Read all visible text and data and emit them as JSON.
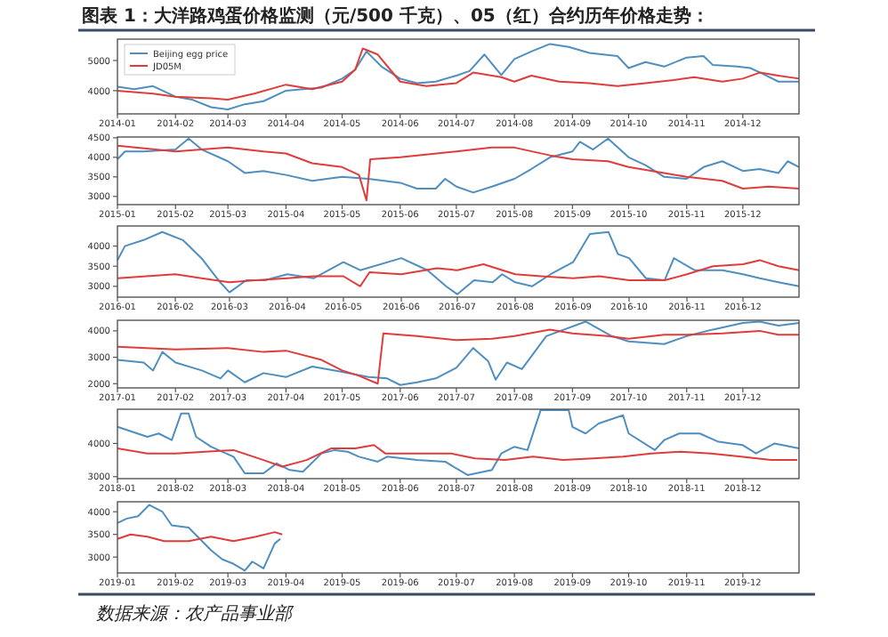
{
  "chart_data": [
    {
      "type": "line",
      "title": "图表 1：大洋路鸡蛋价格监测（元/500 千克）、05（红）合约历年价格走势：",
      "legend": "top left",
      "marker": "none",
      "line_style": "solid",
      "grid": false,
      "xlim": [
        "2014-01-01",
        "2014-12-31"
      ],
      "xticks": [
        "2014-01",
        "2014-02",
        "2014-03",
        "2014-04",
        "2014-05",
        "2014-06",
        "2014-07",
        "2014-08",
        "2014-09",
        "2014-10",
        "2014-11",
        "2014-12"
      ],
      "ylim": [
        3230,
        5710
      ],
      "yticks": [
        4000,
        5000
      ],
      "series": [
        {
          "name": "Beijing egg price",
          "color": "#4f8fc0",
          "x": [
            "2014-01-01",
            "2014-01-10",
            "2014-01-20",
            "2014-02-01",
            "2014-02-10",
            "2014-02-20",
            "2014-03-01",
            "2014-03-10",
            "2014-03-20",
            "2014-04-01",
            "2014-04-10",
            "2014-04-20",
            "2014-05-01",
            "2014-05-08",
            "2014-05-14",
            "2014-05-22",
            "2014-06-01",
            "2014-06-10",
            "2014-06-20",
            "2014-07-01",
            "2014-07-08",
            "2014-07-16",
            "2014-07-25",
            "2014-08-01",
            "2014-08-10",
            "2014-08-20",
            "2014-08-30",
            "2014-09-10",
            "2014-09-25",
            "2014-10-01",
            "2014-10-10",
            "2014-10-20",
            "2014-11-01",
            "2014-11-10",
            "2014-11-15",
            "2014-11-28",
            "2014-12-05",
            "2014-12-12",
            "2014-12-20",
            "2014-12-31"
          ],
          "values": [
            4130,
            4050,
            4150,
            3800,
            3700,
            3450,
            3380,
            3550,
            3650,
            4000,
            4050,
            4100,
            4400,
            4700,
            5300,
            4800,
            4400,
            4250,
            4300,
            4500,
            4650,
            5200,
            4520,
            5050,
            5300,
            5550,
            5450,
            5250,
            5150,
            4750,
            4950,
            4800,
            5100,
            5150,
            4850,
            4800,
            4750,
            4550,
            4300,
            4300
          ]
        },
        {
          "name": "JD05M",
          "color": "#e03c3c",
          "x": [
            "2014-01-01",
            "2014-01-20",
            "2014-02-01",
            "2014-02-20",
            "2014-03-01",
            "2014-03-15",
            "2014-04-01",
            "2014-04-15",
            "2014-05-01",
            "2014-05-08",
            "2014-05-12",
            "2014-05-20",
            "2014-06-01",
            "2014-06-15",
            "2014-07-01",
            "2014-07-10",
            "2014-07-25",
            "2014-08-01",
            "2014-08-10",
            "2014-08-25",
            "2014-09-10",
            "2014-09-25",
            "2014-10-10",
            "2014-10-25",
            "2014-11-05",
            "2014-11-20",
            "2014-12-01",
            "2014-12-10",
            "2014-12-20",
            "2014-12-31"
          ],
          "values": [
            4000,
            3900,
            3800,
            3750,
            3700,
            3900,
            4200,
            4050,
            4300,
            4700,
            5400,
            5200,
            4300,
            4150,
            4250,
            4600,
            4450,
            4300,
            4500,
            4300,
            4250,
            4150,
            4250,
            4350,
            4450,
            4300,
            4400,
            4600,
            4500,
            4400
          ]
        }
      ]
    },
    {
      "type": "line",
      "marker": "none",
      "line_style": "solid",
      "grid": false,
      "xlim": [
        "2015-01-01",
        "2015-12-31"
      ],
      "xticks": [
        "2015-01",
        "2015-02",
        "2015-03",
        "2015-04",
        "2015-05",
        "2015-06",
        "2015-07",
        "2015-08",
        "2015-09",
        "2015-10",
        "2015-11",
        "2015-12"
      ],
      "ylim": [
        2790,
        4520
      ],
      "yticks": [
        3000,
        3500,
        4000,
        4500
      ],
      "series": [
        {
          "color": "#4f8fc0",
          "x": [
            "2015-01-01",
            "2015-01-05",
            "2015-01-15",
            "2015-02-01",
            "2015-02-08",
            "2015-02-15",
            "2015-03-01",
            "2015-03-10",
            "2015-03-20",
            "2015-04-01",
            "2015-04-15",
            "2015-05-01",
            "2015-05-15",
            "2015-06-01",
            "2015-06-10",
            "2015-06-20",
            "2015-06-25",
            "2015-07-01",
            "2015-07-10",
            "2015-07-20",
            "2015-08-01",
            "2015-08-10",
            "2015-08-20",
            "2015-09-01",
            "2015-09-05",
            "2015-09-12",
            "2015-09-20",
            "2015-10-01",
            "2015-10-10",
            "2015-10-20",
            "2015-11-01",
            "2015-11-10",
            "2015-11-20",
            "2015-12-01",
            "2015-12-10",
            "2015-12-20",
            "2015-12-25",
            "2015-12-31"
          ],
          "values": [
            3950,
            4150,
            4150,
            4200,
            4480,
            4200,
            3900,
            3600,
            3650,
            3550,
            3400,
            3500,
            3450,
            3350,
            3200,
            3200,
            3450,
            3250,
            3100,
            3250,
            3450,
            3700,
            4000,
            4150,
            4400,
            4200,
            4480,
            4000,
            3800,
            3500,
            3450,
            3750,
            3900,
            3650,
            3700,
            3600,
            3900,
            3750
          ]
        },
        {
          "color": "#e03c3c",
          "x": [
            "2015-01-01",
            "2015-02-01",
            "2015-02-15",
            "2015-03-01",
            "2015-03-20",
            "2015-04-01",
            "2015-04-15",
            "2015-05-01",
            "2015-05-10",
            "2015-05-14",
            "2015-05-16",
            "2015-06-01",
            "2015-07-01",
            "2015-07-20",
            "2015-08-01",
            "2015-08-20",
            "2015-09-01",
            "2015-09-20",
            "2015-10-01",
            "2015-10-20",
            "2015-11-01",
            "2015-11-20",
            "2015-12-01",
            "2015-12-15",
            "2015-12-31"
          ],
          "values": [
            4300,
            4150,
            4200,
            4250,
            4150,
            4100,
            3850,
            3750,
            3550,
            2900,
            3950,
            4000,
            4150,
            4250,
            4250,
            4050,
            3950,
            3900,
            3750,
            3600,
            3500,
            3400,
            3200,
            3250,
            3200
          ]
        }
      ]
    },
    {
      "type": "line",
      "marker": "none",
      "line_style": "solid",
      "grid": false,
      "xlim": [
        "2016-01-01",
        "2016-12-31"
      ],
      "xticks": [
        "2016-01",
        "2016-02",
        "2016-03",
        "2016-04",
        "2016-05",
        "2016-06",
        "2016-07",
        "2016-08",
        "2016-09",
        "2016-10",
        "2016-11",
        "2016-12"
      ],
      "ylim": [
        2730,
        4500
      ],
      "yticks": [
        3000,
        3500,
        4000
      ],
      "series": [
        {
          "color": "#4f8fc0",
          "x": [
            "2016-01-01",
            "2016-01-05",
            "2016-01-15",
            "2016-01-25",
            "2016-02-05",
            "2016-02-15",
            "2016-02-25",
            "2016-03-01",
            "2016-03-10",
            "2016-03-20",
            "2016-04-01",
            "2016-04-15",
            "2016-05-01",
            "2016-05-10",
            "2016-06-01",
            "2016-06-15",
            "2016-06-25",
            "2016-07-01",
            "2016-07-10",
            "2016-07-20",
            "2016-07-25",
            "2016-08-01",
            "2016-08-10",
            "2016-08-20",
            "2016-09-01",
            "2016-09-10",
            "2016-09-20",
            "2016-09-25",
            "2016-10-01",
            "2016-10-10",
            "2016-10-20",
            "2016-10-25",
            "2016-11-05",
            "2016-11-20",
            "2016-12-01",
            "2016-12-10",
            "2016-12-20",
            "2016-12-31"
          ],
          "values": [
            3650,
            4000,
            4150,
            4350,
            4150,
            3700,
            3100,
            2850,
            3150,
            3150,
            3300,
            3200,
            3600,
            3400,
            3700,
            3400,
            3000,
            2800,
            3150,
            3100,
            3300,
            3100,
            3000,
            3300,
            3600,
            4300,
            4350,
            3800,
            3700,
            3200,
            3150,
            3700,
            3400,
            3400,
            3300,
            3200,
            3100,
            3000
          ]
        },
        {
          "color": "#e03c3c",
          "x": [
            "2016-01-01",
            "2016-02-01",
            "2016-02-15",
            "2016-03-01",
            "2016-03-15",
            "2016-04-01",
            "2016-04-15",
            "2016-05-01",
            "2016-05-10",
            "2016-05-15",
            "2016-06-01",
            "2016-06-20",
            "2016-07-01",
            "2016-07-15",
            "2016-08-01",
            "2016-08-15",
            "2016-09-01",
            "2016-09-15",
            "2016-10-01",
            "2016-10-20",
            "2016-11-01",
            "2016-11-15",
            "2016-12-01",
            "2016-12-10",
            "2016-12-20",
            "2016-12-31"
          ],
          "values": [
            3200,
            3300,
            3200,
            3100,
            3150,
            3200,
            3250,
            3250,
            3000,
            3350,
            3300,
            3450,
            3400,
            3550,
            3300,
            3250,
            3200,
            3250,
            3150,
            3150,
            3300,
            3500,
            3550,
            3650,
            3500,
            3400
          ]
        }
      ]
    },
    {
      "type": "line",
      "marker": "none",
      "line_style": "solid",
      "grid": false,
      "xlim": [
        "2017-01-01",
        "2017-12-31"
      ],
      "xticks": [
        "2017-01",
        "2017-02",
        "2017-03",
        "2017-04",
        "2017-05",
        "2017-06",
        "2017-07",
        "2017-08",
        "2017-09",
        "2017-10",
        "2017-11",
        "2017-12"
      ],
      "ylim": [
        1840,
        4400
      ],
      "yticks": [
        2000,
        3000,
        4000
      ],
      "series": [
        {
          "color": "#4f8fc0",
          "x": [
            "2017-01-01",
            "2017-01-15",
            "2017-01-20",
            "2017-01-25",
            "2017-02-01",
            "2017-02-15",
            "2017-02-25",
            "2017-03-01",
            "2017-03-10",
            "2017-03-20",
            "2017-04-01",
            "2017-04-15",
            "2017-05-01",
            "2017-05-15",
            "2017-05-25",
            "2017-06-01",
            "2017-06-10",
            "2017-06-20",
            "2017-07-01",
            "2017-07-10",
            "2017-07-18",
            "2017-07-22",
            "2017-07-28",
            "2017-08-05",
            "2017-08-18",
            "2017-09-08",
            "2017-09-22",
            "2017-10-01",
            "2017-10-20",
            "2017-11-01",
            "2017-11-15",
            "2017-12-01",
            "2017-12-10",
            "2017-12-20",
            "2017-12-31"
          ],
          "values": [
            2900,
            2800,
            2500,
            3200,
            2800,
            2500,
            2200,
            2500,
            2050,
            2400,
            2250,
            2650,
            2450,
            2250,
            2200,
            1950,
            2050,
            2200,
            2600,
            3350,
            2850,
            2150,
            2800,
            2550,
            3800,
            4350,
            3800,
            3600,
            3500,
            3800,
            4050,
            4300,
            4350,
            4200,
            4300
          ]
        },
        {
          "color": "#e03c3c",
          "x": [
            "2017-01-01",
            "2017-02-01",
            "2017-03-01",
            "2017-03-20",
            "2017-04-01",
            "2017-04-20",
            "2017-05-01",
            "2017-05-10",
            "2017-05-20",
            "2017-05-23",
            "2017-06-10",
            "2017-07-01",
            "2017-07-20",
            "2017-08-01",
            "2017-08-20",
            "2017-09-01",
            "2017-09-20",
            "2017-10-01",
            "2017-10-20",
            "2017-11-01",
            "2017-11-20",
            "2017-12-10",
            "2017-12-20",
            "2017-12-31"
          ],
          "values": [
            3400,
            3300,
            3350,
            3200,
            3250,
            2900,
            2500,
            2300,
            2000,
            3900,
            3800,
            3650,
            3700,
            3800,
            4050,
            3900,
            3800,
            3700,
            3850,
            3850,
            3900,
            4000,
            3850,
            3850
          ]
        }
      ]
    },
    {
      "type": "line",
      "marker": "none",
      "line_style": "solid",
      "grid": false,
      "xlim": [
        "2018-01-01",
        "2018-12-31"
      ],
      "xticks": [
        "2018-01",
        "2018-02",
        "2018-03",
        "2018-04",
        "2018-05",
        "2018-06",
        "2018-07",
        "2018-08",
        "2018-09",
        "2018-10",
        "2018-11",
        "2018-12"
      ],
      "ylim": [
        2940,
        5030
      ],
      "yticks": [
        3000,
        4000
      ],
      "series": [
        {
          "color": "#4f8fc0",
          "x": [
            "2018-01-01",
            "2018-01-17",
            "2018-01-23",
            "2018-01-30",
            "2018-02-04",
            "2018-02-08",
            "2018-02-12",
            "2018-02-20",
            "2018-03-04",
            "2018-03-10",
            "2018-03-20",
            "2018-03-27",
            "2018-04-03",
            "2018-04-10",
            "2018-04-20",
            "2018-04-27",
            "2018-05-04",
            "2018-05-10",
            "2018-05-20",
            "2018-05-25",
            "2018-06-10",
            "2018-06-25",
            "2018-07-07",
            "2018-07-20",
            "2018-07-25",
            "2018-08-01",
            "2018-08-08",
            "2018-08-15",
            "2018-08-30",
            "2018-09-01",
            "2018-09-08",
            "2018-09-15",
            "2018-09-28",
            "2018-10-01",
            "2018-10-15",
            "2018-10-20",
            "2018-10-28",
            "2018-11-08",
            "2018-11-18",
            "2018-12-01",
            "2018-12-08",
            "2018-12-18",
            "2018-12-31"
          ],
          "values": [
            4500,
            4200,
            4300,
            4100,
            4900,
            4900,
            4200,
            3900,
            3600,
            3100,
            3100,
            3400,
            3200,
            3150,
            3700,
            3800,
            3750,
            3600,
            3450,
            3600,
            3500,
            3450,
            3050,
            3200,
            3700,
            3900,
            3800,
            5000,
            5000,
            4500,
            4300,
            4600,
            4850,
            4300,
            3800,
            4100,
            4300,
            4300,
            4050,
            3950,
            3700,
            4000,
            3850
          ]
        },
        {
          "color": "#e03c3c",
          "x": [
            "2018-01-01",
            "2018-01-17",
            "2018-02-01",
            "2018-02-17",
            "2018-03-04",
            "2018-03-20",
            "2018-03-30",
            "2018-04-12",
            "2018-04-25",
            "2018-05-08",
            "2018-05-18",
            "2018-05-24",
            "2018-06-09",
            "2018-06-28",
            "2018-07-11",
            "2018-07-27",
            "2018-08-11",
            "2018-08-27",
            "2018-09-12",
            "2018-09-28",
            "2018-10-13",
            "2018-10-29",
            "2018-11-14",
            "2018-11-30",
            "2018-12-16",
            "2018-12-30"
          ],
          "values": [
            3850,
            3700,
            3700,
            3750,
            3800,
            3500,
            3300,
            3500,
            3850,
            3850,
            3950,
            3700,
            3700,
            3700,
            3550,
            3500,
            3600,
            3500,
            3550,
            3600,
            3700,
            3750,
            3700,
            3600,
            3500,
            3500
          ]
        }
      ]
    },
    {
      "type": "line",
      "marker": "none",
      "line_style": "solid",
      "grid": false,
      "xlim": [
        "2019-01-01",
        "2019-12-31"
      ],
      "xticks": [
        "2019-01",
        "2019-02",
        "2019-03",
        "2019-04",
        "2019-05",
        "2019-06",
        "2019-07",
        "2019-08",
        "2019-09",
        "2019-10",
        "2019-11",
        "2019-12"
      ],
      "ylim": [
        2650,
        4220
      ],
      "yticks": [
        3000,
        3500,
        4000
      ],
      "annotations": [
        "数据来源：农产品事业部"
      ],
      "series": [
        {
          "color": "#4f8fc0",
          "x": [
            "2019-01-01",
            "2019-01-06",
            "2019-01-12",
            "2019-01-18",
            "2019-01-25",
            "2019-01-30",
            "2019-02-08",
            "2019-02-14",
            "2019-02-20",
            "2019-02-26",
            "2019-03-04",
            "2019-03-10",
            "2019-03-14",
            "2019-03-20",
            "2019-03-26",
            "2019-03-29"
          ],
          "values": [
            3750,
            3850,
            3900,
            4150,
            4000,
            3700,
            3650,
            3400,
            3150,
            2950,
            2850,
            2700,
            2900,
            2750,
            3300,
            3400
          ]
        },
        {
          "color": "#e03c3c",
          "x": [
            "2019-01-01",
            "2019-01-08",
            "2019-01-17",
            "2019-01-26",
            "2019-02-08",
            "2019-02-20",
            "2019-03-04",
            "2019-03-16",
            "2019-03-26",
            "2019-03-30"
          ],
          "values": [
            3400,
            3500,
            3450,
            3350,
            3350,
            3450,
            3350,
            3450,
            3550,
            3500
          ]
        }
      ]
    }
  ]
}
